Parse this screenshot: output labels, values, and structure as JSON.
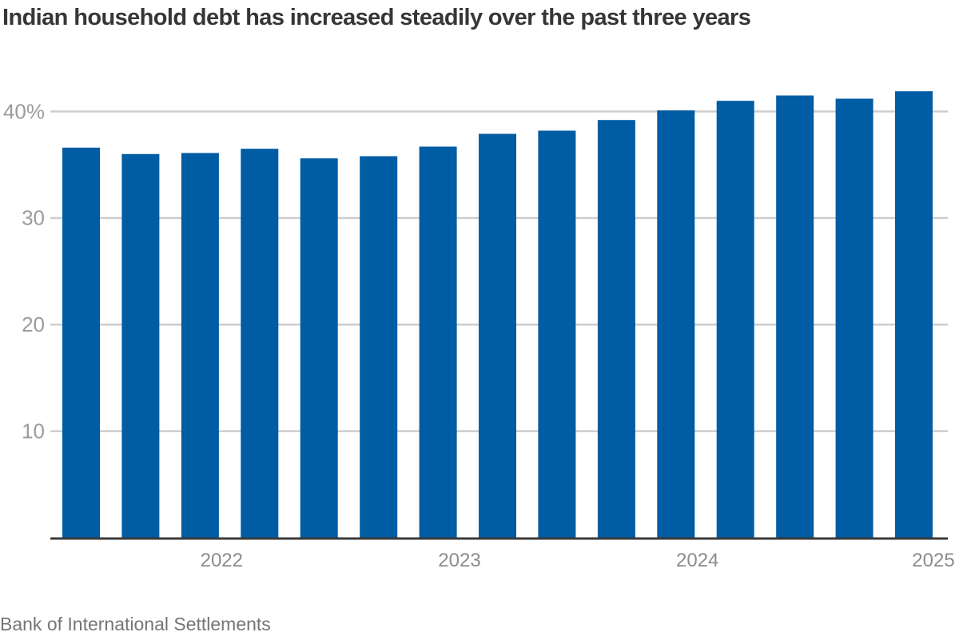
{
  "header": {
    "title": "Indian household debt has increased steadily over the past three years"
  },
  "footer": {
    "source": "Bank of International Settlements"
  },
  "chart_data": {
    "type": "bar",
    "title": "Indian household debt has increased steadily over the past three years",
    "source": "Bank of International Settlements",
    "categories": [
      "2021-Q2",
      "2021-Q3",
      "2021-Q4",
      "2022-Q1",
      "2022-Q2",
      "2022-Q3",
      "2022-Q4",
      "2023-Q1",
      "2023-Q2",
      "2023-Q3",
      "2023-Q4",
      "2024-Q1",
      "2024-Q2",
      "2024-Q3",
      "2024-Q4"
    ],
    "values": [
      36.6,
      36.0,
      36.1,
      36.5,
      35.6,
      35.8,
      36.7,
      37.9,
      38.2,
      39.2,
      40.1,
      41.0,
      41.5,
      41.2,
      41.9
    ],
    "xlabel": "",
    "ylabel": "",
    "ylim": [
      0,
      43.5
    ],
    "grid": true,
    "legend": false,
    "y_axis": {
      "ticks": [
        10,
        20,
        30,
        40
      ],
      "tick_labels": [
        "10",
        "20",
        "30",
        "40%"
      ]
    },
    "x_axis": {
      "tick_labels": [
        {
          "label": "2022",
          "after_bar": 3
        },
        {
          "label": "2023",
          "after_bar": 7
        },
        {
          "label": "2024",
          "after_bar": 11
        },
        {
          "label": "2025",
          "after_bar": 15
        }
      ]
    },
    "colors": {
      "bar": "#005CA3",
      "gridline": "#CDCDCD",
      "axis_line": "#3A3A3A",
      "y_tick_text": "#9C9C9C",
      "x_tick_text": "#8C8C8C",
      "title_text": "#363636",
      "source_text": "#757575"
    }
  }
}
